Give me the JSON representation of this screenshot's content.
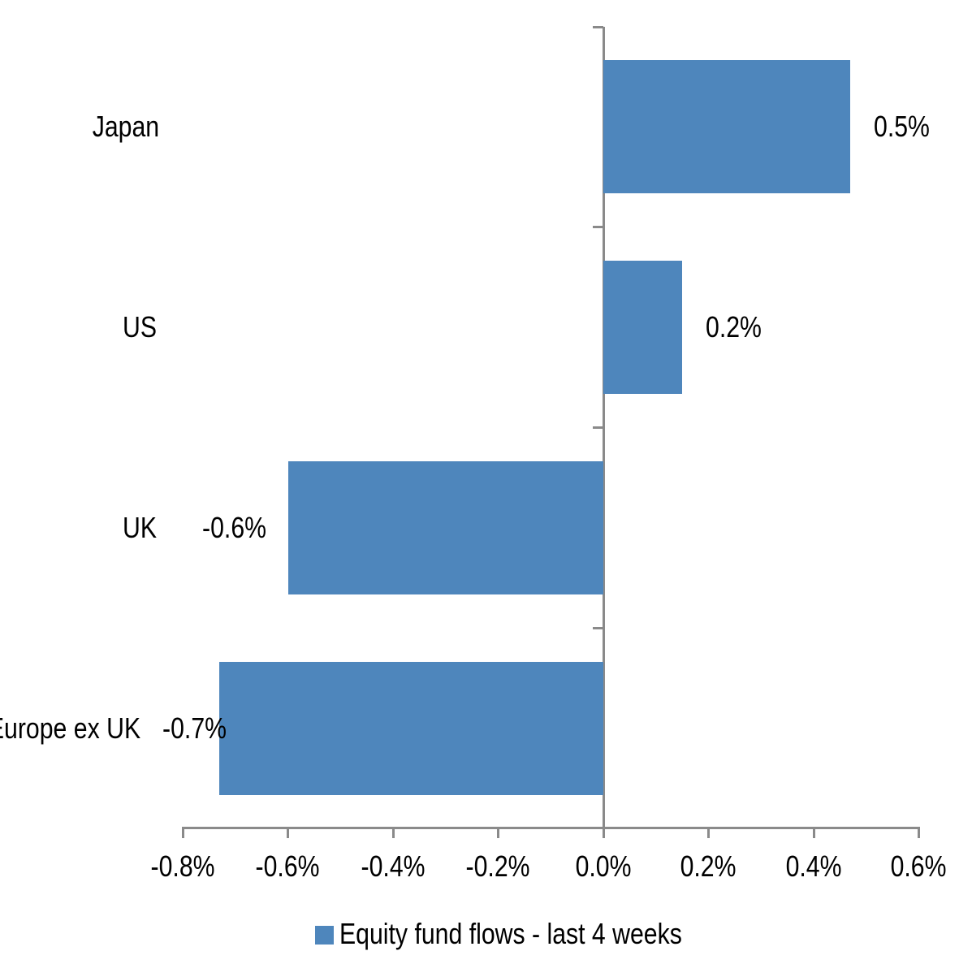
{
  "chart_data": {
    "type": "bar",
    "orientation": "horizontal",
    "title": "",
    "xlabel": "",
    "ylabel": "",
    "categories": [
      "Japan",
      "US",
      "UK",
      "Europe ex UK"
    ],
    "values": [
      0.5,
      0.2,
      -0.6,
      -0.7
    ],
    "values_precise_pct": [
      0.47,
      0.15,
      -0.6,
      -0.73
    ],
    "data_labels": [
      "0.5%",
      "0.2%",
      "-0.6%",
      "-0.7%"
    ],
    "series": [
      {
        "name": "Equity fund flows - last 4 weeks",
        "values": [
          0.5,
          0.2,
          -0.6,
          -0.7
        ]
      }
    ],
    "unit": "%",
    "xlim": [
      -0.8,
      0.6
    ],
    "x_tick_values": [
      -0.8,
      -0.6,
      -0.4,
      -0.2,
      0.0,
      0.2,
      0.4,
      0.6
    ],
    "x_tick_labels": [
      "-0.8%",
      "-0.6%",
      "-0.4%",
      "-0.2%",
      "0.0%",
      "0.2%",
      "0.4%",
      "0.6%"
    ],
    "grid": false,
    "legend": {
      "position": "bottom",
      "entries": [
        "Equity fund flows - last 4 weeks"
      ]
    },
    "colors": {
      "bar_fill": "#4E86BC",
      "axis_line": "#8A8A8A",
      "label_text": "#000000",
      "background": "#FFFFFF"
    }
  }
}
